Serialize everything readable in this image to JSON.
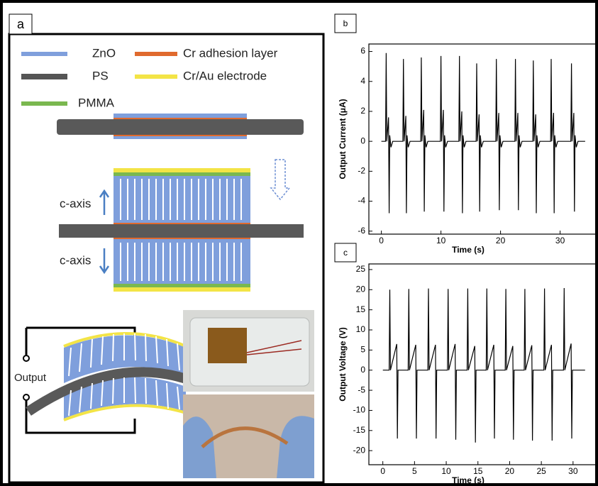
{
  "panel_a": {
    "label": "a",
    "legend": [
      "ZnO",
      "Cr adhesion layer",
      "PS",
      "Cr/Au electrode",
      "PMMA"
    ],
    "annotations": [
      "c-axis",
      "c-axis",
      "Output"
    ]
  },
  "chart_data": [
    {
      "type": "line",
      "label": "b",
      "xlabel": "Time (s)",
      "ylabel": "Output Current (μA)",
      "color": "#000000",
      "xlim": [
        -2.1,
        36
      ],
      "ylim": [
        -6.2,
        6.5
      ],
      "xticks": [
        0,
        10,
        20,
        30
      ],
      "yticks": [
        -6,
        -4,
        -2,
        0,
        2,
        4,
        6
      ],
      "x": [
        0,
        0.7,
        0.8,
        0.9,
        1.2,
        1.3,
        1.4,
        1.6,
        1.9,
        3.6,
        3.7,
        3.8,
        4.1,
        4.2,
        4.3,
        4.5,
        4.8,
        6.6,
        6.7,
        6.8,
        7.1,
        7.2,
        7.3,
        7.5,
        7.8,
        9.9,
        10,
        10.1,
        10.4,
        10.5,
        10.6,
        10.8,
        11.1,
        13,
        13.1,
        13.2,
        13.5,
        13.6,
        13.7,
        13.9,
        14.2,
        15.9,
        16,
        16.1,
        16.4,
        16.5,
        16.6,
        16.8,
        17.1,
        19.2,
        19.3,
        19.4,
        19.7,
        19.8,
        19.9,
        20.1,
        20.4,
        22.4,
        22.5,
        22.6,
        22.9,
        23,
        23.1,
        23.3,
        23.6,
        25.4,
        25.5,
        25.6,
        25.9,
        26,
        26.1,
        26.3,
        26.6,
        28.4,
        28.5,
        28.6,
        28.9,
        29,
        29.1,
        29.3,
        29.6,
        31.8,
        31.9,
        32,
        32.3,
        32.4,
        32.5,
        32.7,
        33,
        34.2
      ],
      "values": [
        0,
        0,
        5.9,
        0,
        1.6,
        -4.8,
        0.4,
        -0.4,
        0,
        0,
        5.5,
        0,
        1.7,
        -4.8,
        0.4,
        -0.4,
        0,
        0,
        5.6,
        0,
        2.1,
        -4.7,
        0.4,
        -0.4,
        0,
        0,
        5.7,
        0,
        2.1,
        -4.7,
        0.4,
        -0.4,
        0,
        0,
        5.7,
        0,
        2.0,
        -4.8,
        0.4,
        -0.4,
        0,
        0,
        5.2,
        0,
        1.8,
        -4.7,
        0.4,
        -0.4,
        0,
        0,
        5.5,
        0,
        1.9,
        -4.6,
        0.4,
        -0.4,
        0,
        0,
        5.5,
        0,
        1.9,
        -4.6,
        0.4,
        -0.4,
        0,
        0,
        5.4,
        0,
        1.8,
        -4.8,
        0.4,
        -0.4,
        0,
        0,
        5.5,
        0,
        1.9,
        -4.8,
        0.4,
        -0.4,
        0,
        0,
        5.2,
        0,
        1.9,
        -4.7,
        0.4,
        -0.4,
        0,
        0
      ]
    },
    {
      "type": "line",
      "label": "c",
      "xlabel": "Time (s)",
      "ylabel": "Output Voltage (V)",
      "color": "#000000",
      "xlim": [
        -2.2,
        33.6
      ],
      "ylim": [
        -23.5,
        26.4
      ],
      "xticks": [
        0,
        5,
        10,
        15,
        20,
        25,
        30
      ],
      "yticks": [
        -20,
        -15,
        -10,
        -5,
        0,
        5,
        10,
        15,
        20,
        25
      ],
      "x": [
        0,
        1.0,
        1.1,
        1.2,
        2.2,
        2.3,
        2.4,
        4.0,
        4.1,
        4.2,
        5.2,
        5.3,
        5.4,
        7.1,
        7.2,
        7.3,
        8.3,
        8.4,
        8.5,
        10.2,
        10.3,
        10.4,
        11.4,
        11.5,
        11.6,
        13.3,
        13.4,
        13.5,
        14.5,
        14.6,
        14.7,
        16.3,
        16.4,
        16.5,
        17.5,
        17.6,
        17.7,
        19.3,
        19.4,
        19.5,
        20.5,
        20.6,
        20.7,
        22.3,
        22.4,
        22.5,
        23.5,
        23.6,
        23.7,
        25.4,
        25.5,
        25.6,
        26.6,
        26.7,
        26.8,
        28.5,
        28.6,
        28.7,
        29.7,
        29.8,
        29.9,
        31.9
      ],
      "values": [
        0,
        0,
        20,
        0,
        6.5,
        -17,
        0,
        0,
        20.2,
        0,
        6.3,
        -17,
        0,
        0,
        20.3,
        0,
        6.3,
        -17,
        0,
        0,
        20.2,
        0,
        6.5,
        -17.3,
        0,
        0,
        20.3,
        0,
        6.0,
        -18,
        0,
        0,
        20.3,
        0,
        6.3,
        -17,
        0,
        0,
        20.2,
        0,
        6.0,
        -17.3,
        0,
        0,
        20.2,
        0,
        6.2,
        -17.5,
        0,
        0,
        20.3,
        0,
        6.3,
        -17.5,
        0,
        0,
        20.4,
        0,
        6.6,
        -17,
        0,
        0
      ]
    }
  ]
}
